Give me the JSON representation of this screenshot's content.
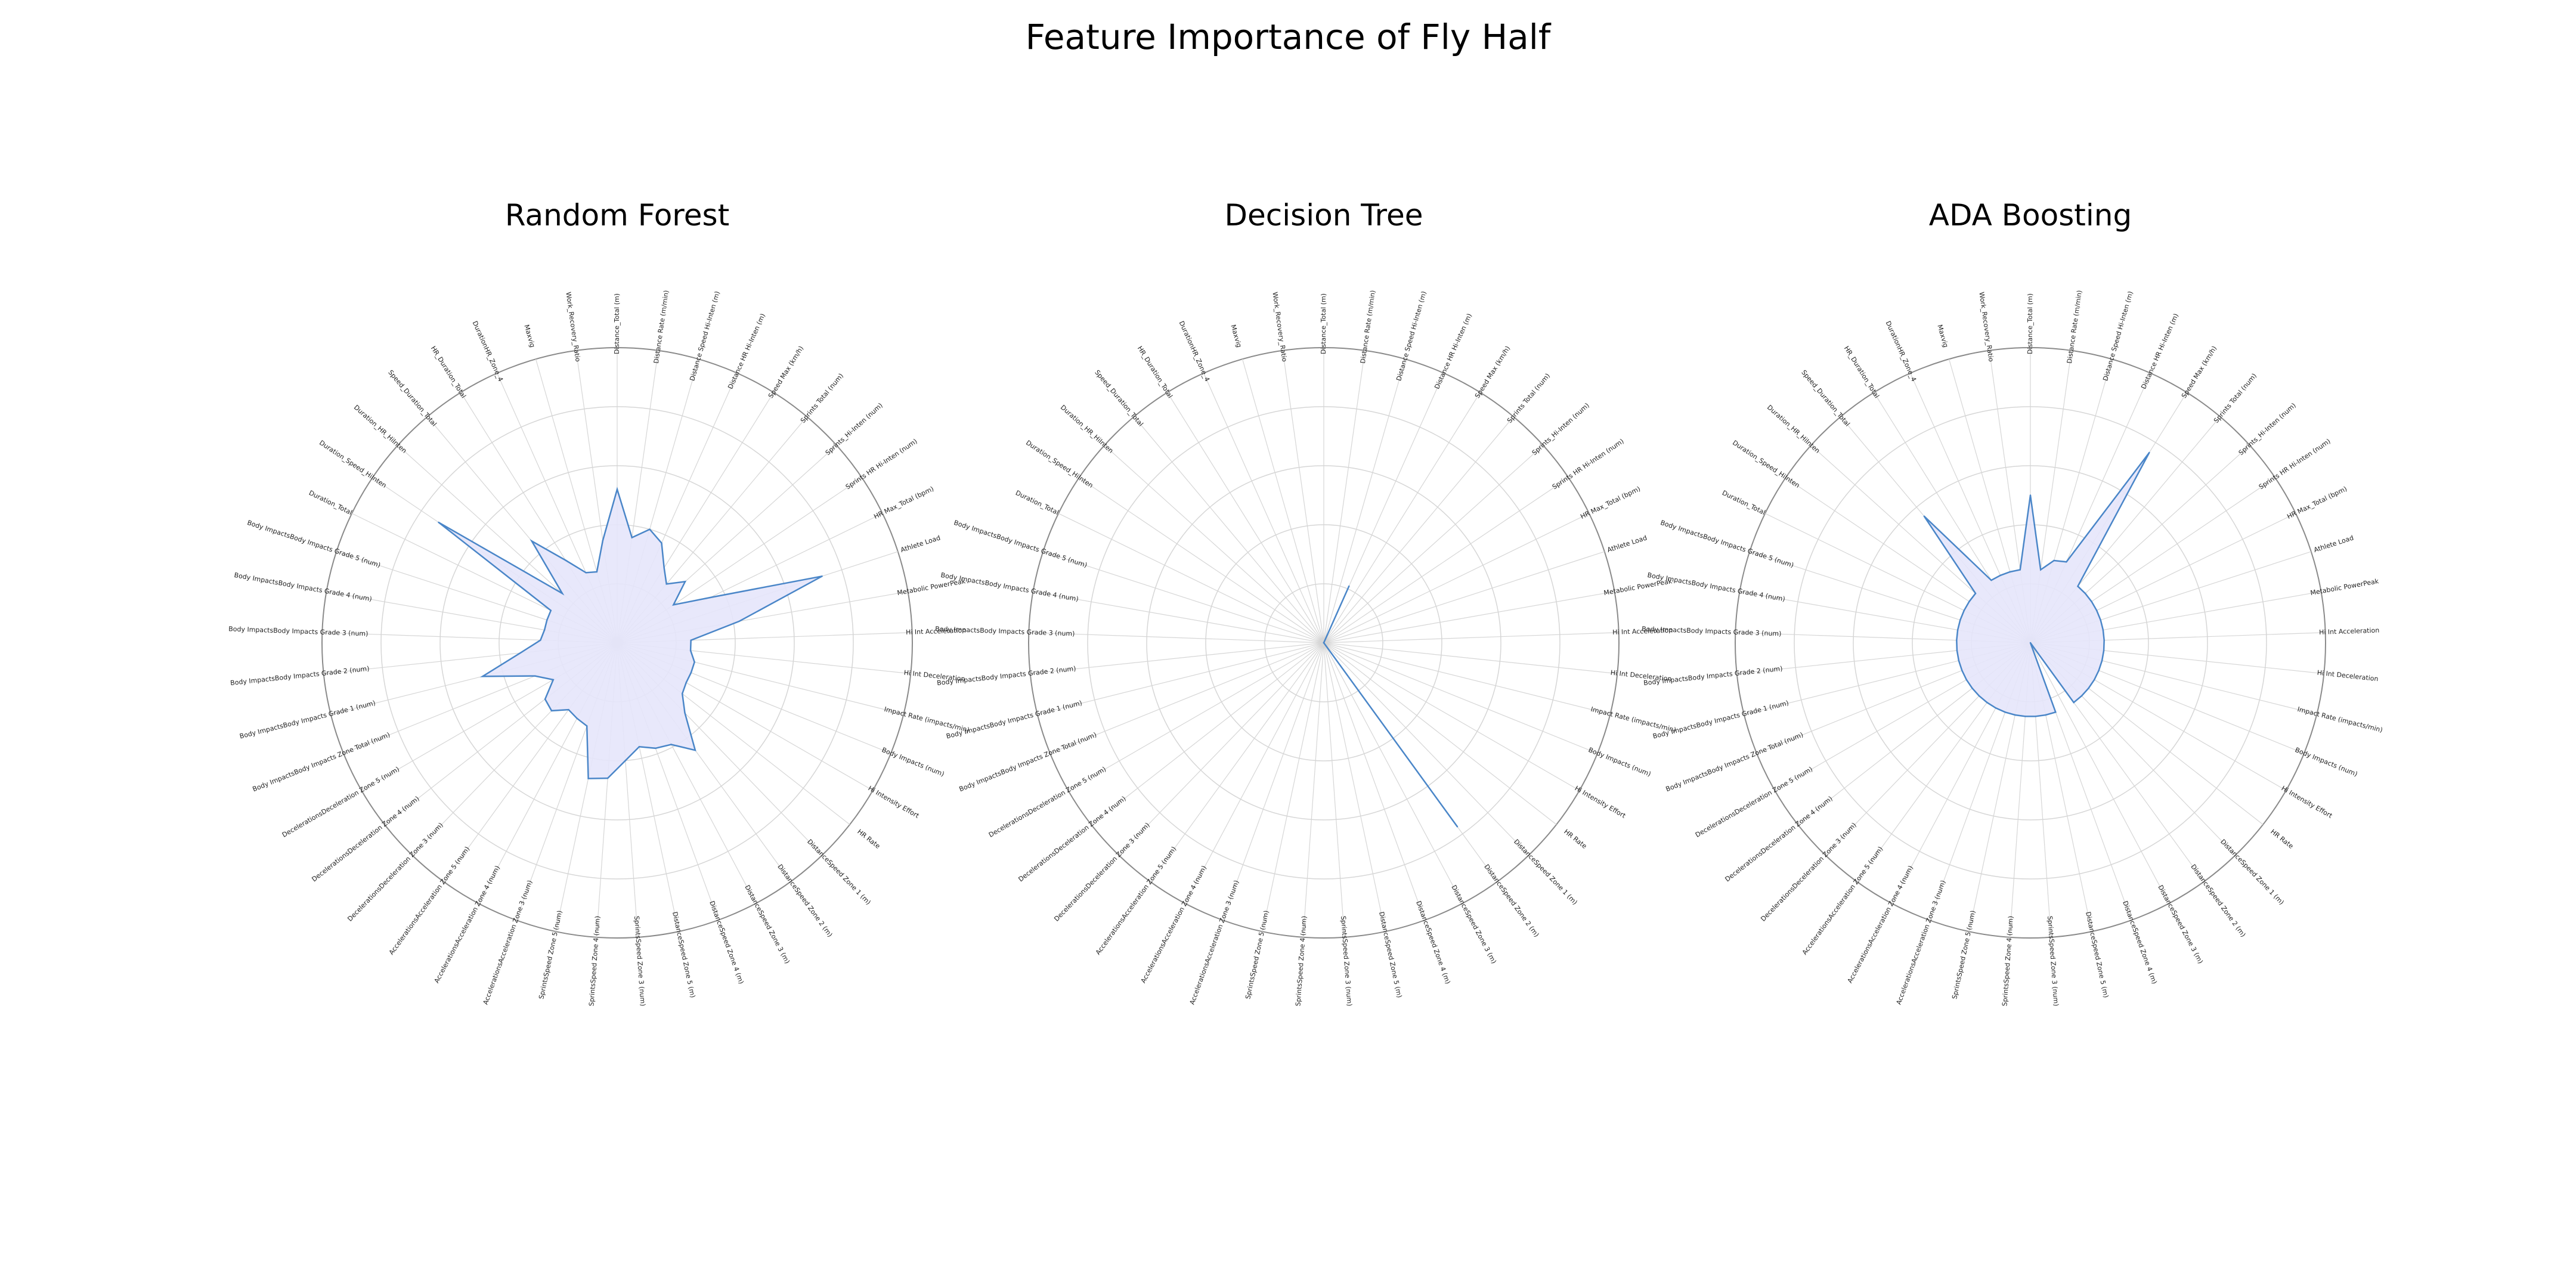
{
  "figure": {
    "title": "Feature Importance of Fly Half"
  },
  "chart_data": {
    "type": "radar",
    "title": "Feature Importance of Fly Half",
    "grid": true,
    "features": [
      "Distance_Total (m)",
      "Distance Rate (m/min)",
      "Distance Speed Hi-Inten (m)",
      "Distance HR Hi-Inten (m)",
      "Speed Max (km/h)",
      "Sprints Total (num)",
      "Sprints_Hi-Inten (num)",
      "Sprints HR Hi-Inten (num)",
      "HR Max_Total (bpm)",
      "Athlete Load",
      "Metabolic PowerPeak",
      "Hi Int Acceleration",
      "Hi Int Deceleration",
      "Impact Rate (impacts/min)",
      "Body Impacts (num)",
      "Hi Intensity Effort",
      "HR Rate",
      "DistanceSpeed Zone 1 (m)",
      "DistanceSpeed Zone 2 (m)",
      "DistanceSpeed Zone 3 (m)",
      "DistanceSpeed Zone 4 (m)",
      "DistanceSpeed Zone 5 (m)",
      "SprintsSpeed Zone 3 (num)",
      "SprintsSpeed Zone 4 (num)",
      "SprintsSpeed Zone 5 (num)",
      "AccelerationsAcceleration Zone 3 (num)",
      "AccelerationsAcceleration Zone 4 (num)",
      "AccelerationsAcceleration Zone 5 (num)",
      "DecelerationsDeceleration Zone 3 (num)",
      "DecelerationsDeceleration Zone 4 (num)",
      "DecelerationsDeceleration Zone 5 (num)",
      "Body ImpactsBody Impacts Zone Total (num)",
      "Body ImpactsBody Impacts Grade 1 (num)",
      "Body ImpactsBody Impacts Grade 2 (num)",
      "Body ImpactsBody Impacts Grade 3 (num)",
      "Body ImpactsBody Impacts Grade 4 (num)",
      "Body ImpactsBody Impacts Grade 5 (num)",
      "Duration_Total",
      "Duration_Speed_HiInten",
      "Duration_HR_HiInten",
      "Speed_Duration_Total",
      "HR_Duration_Total",
      "DurationHR_Zone_4",
      "Maxvig",
      "Work_Recovery_Ratio"
    ],
    "rmax": 0.1,
    "rticks": [
      0.02,
      0.04,
      0.06,
      0.08,
      0.1
    ],
    "rtick_labels": [
      "",
      "",
      "",
      "",
      ""
    ],
    "charts": [
      {
        "title": "Random Forest",
        "values": [
          0.052,
          0.036,
          0.04,
          0.037,
          0.03,
          0.026,
          0.031,
          0.023,
          0.035,
          0.073,
          0.042,
          0.025,
          0.025,
          0.027,
          0.027,
          0.027,
          0.028,
          0.033,
          0.045,
          0.039,
          0.038,
          0.036,
          0.04,
          0.046,
          0.047,
          0.03,
          0.029,
          0.028,
          0.032,
          0.031,
          0.025,
          0.03,
          0.047,
          0.033,
          0.026,
          0.025,
          0.025,
          0.025,
          0.073,
          0.025,
          0.045,
          0.033,
          0.026,
          0.025,
          0.035
        ]
      },
      {
        "title": "Decision Tree",
        "values": [
          0.0,
          0.0,
          0.0,
          0.021,
          0.0,
          0.0,
          0.0,
          0.0,
          0.0,
          0.0,
          0.0,
          0.0,
          0.0,
          0.0,
          0.0,
          0.0,
          0.0,
          0.0,
          0.077,
          0.0,
          0.0,
          0.0,
          0.0,
          0.0,
          0.0,
          0.0,
          0.0,
          0.0,
          0.0,
          0.0,
          0.0,
          0.0,
          0.0,
          0.0,
          0.0,
          0.0,
          0.0,
          0.0,
          0.0,
          0.0,
          0.0,
          0.0,
          0.0,
          0.0,
          0.0
        ]
      },
      {
        "title": "ADA Boosting",
        "values": [
          0.05,
          0.025,
          0.029,
          0.03,
          0.076,
          0.025,
          0.025,
          0.025,
          0.025,
          0.025,
          0.025,
          0.025,
          0.025,
          0.025,
          0.025,
          0.025,
          0.025,
          0.025,
          0.025,
          0.0,
          0.025,
          0.025,
          0.025,
          0.025,
          0.025,
          0.025,
          0.025,
          0.025,
          0.025,
          0.025,
          0.025,
          0.025,
          0.025,
          0.025,
          0.025,
          0.025,
          0.025,
          0.025,
          0.025,
          0.025,
          0.056,
          0.025,
          0.025,
          0.025,
          0.025
        ]
      }
    ]
  },
  "colors": {
    "line": "#4a86c8",
    "fill": "#e5e5fb",
    "grid": "#d6d6d6",
    "outer": "#8a8a8a"
  }
}
